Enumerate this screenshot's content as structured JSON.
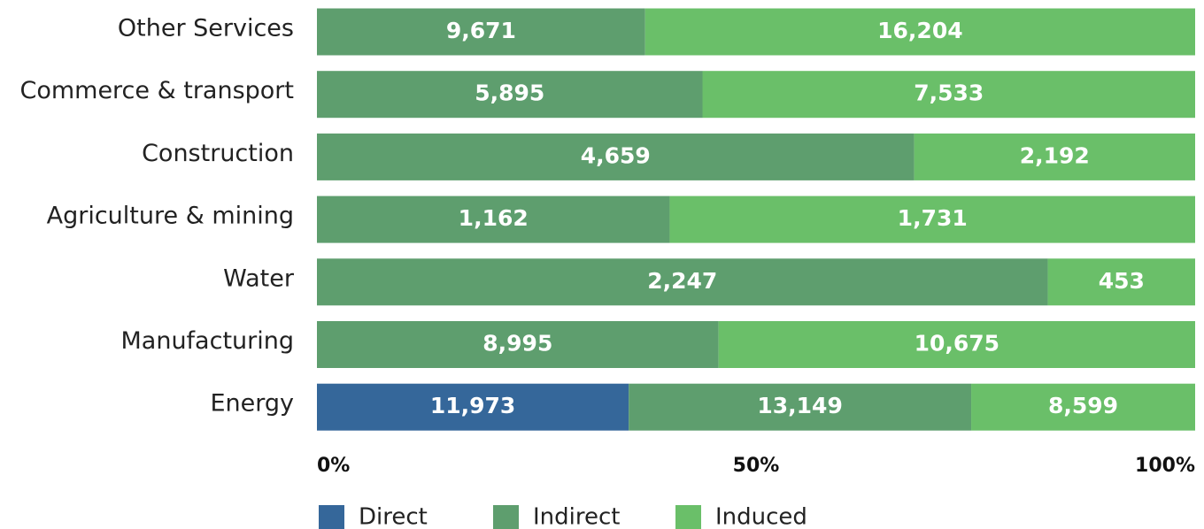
{
  "chart_data": {
    "type": "bar",
    "orientation": "horizontal",
    "stacked": "percent",
    "categories": [
      "Other Services",
      "Commerce & transport",
      "Construction",
      "Agriculture & mining",
      "Water",
      "Manufacturing",
      "Energy"
    ],
    "series": [
      {
        "name": "Direct",
        "color": "#35679a",
        "values": [
          null,
          null,
          null,
          null,
          null,
          null,
          11973
        ],
        "value_labels": [
          null,
          null,
          null,
          null,
          null,
          null,
          "11,973"
        ]
      },
      {
        "name": "Indirect",
        "color": "#5e9e6e",
        "values": [
          9671,
          5895,
          4659,
          1162,
          2247,
          8995,
          13149
        ],
        "value_labels": [
          "9,671",
          "5,895",
          "4,659",
          "1,162",
          "2,247",
          "8,995",
          "13,149"
        ]
      },
      {
        "name": "Induced",
        "color": "#6abf69",
        "values": [
          16204,
          7533,
          2192,
          1731,
          453,
          10675,
          8599
        ],
        "value_labels": [
          "16,204",
          "7,533",
          "2,192",
          "1,731",
          "453",
          "10,675",
          "8,599"
        ]
      }
    ],
    "xlim": [
      0,
      100
    ],
    "xticks": [
      {
        "value": 0,
        "label": "0%"
      },
      {
        "value": 50,
        "label": "50%"
      },
      {
        "value": 100,
        "label": "100%"
      }
    ],
    "legend": "bottom"
  }
}
